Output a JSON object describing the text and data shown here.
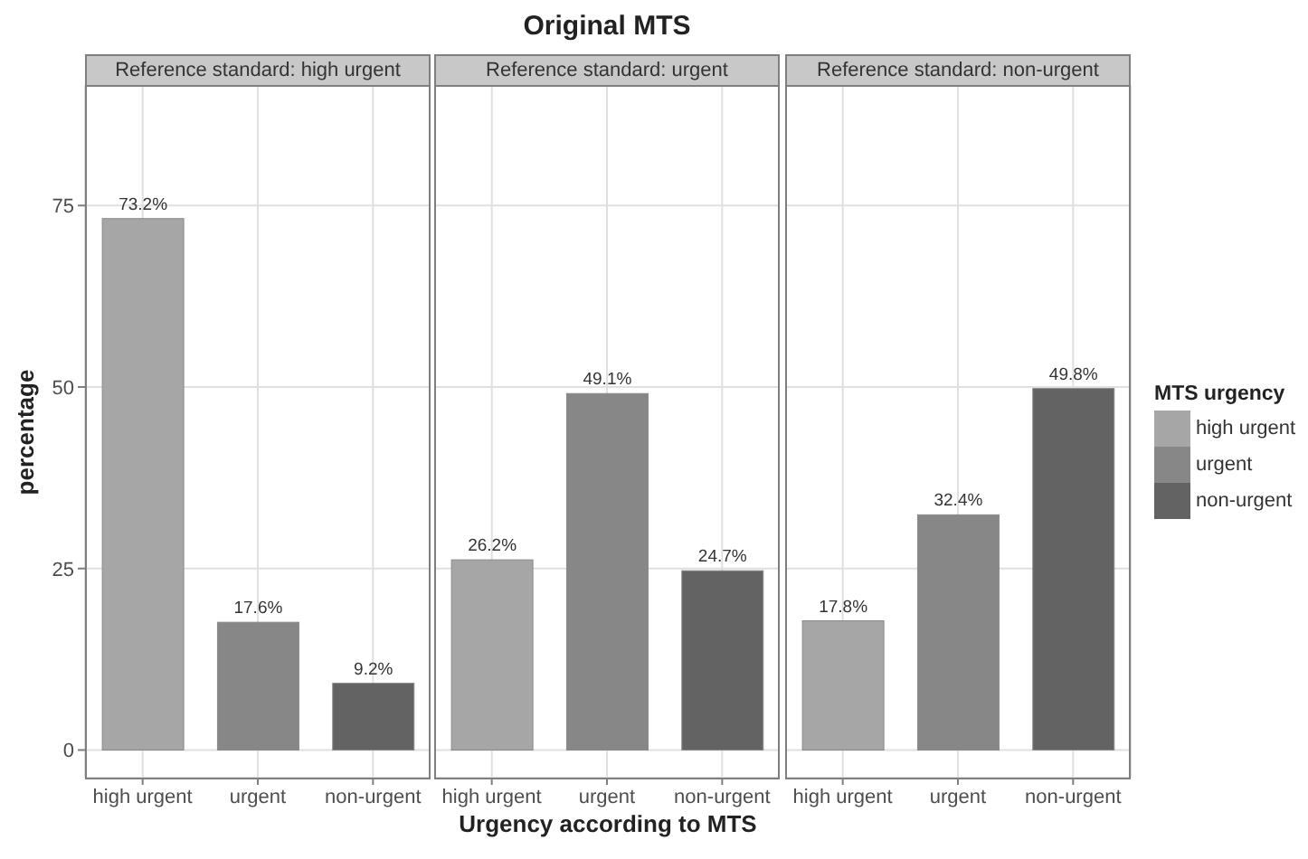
{
  "chart_data": [
    {
      "type": "bar",
      "subtitle": "Reference standard: high urgent",
      "ylabel": "percentage",
      "categories": [
        "high urgent",
        "urgent",
        "non-urgent"
      ],
      "stacked": true,
      "series": [
        {
          "color": "#a6a6a6",
          "values": [
            73.2,
            null,
            null
          ],
          "value_labels": [
            "73.2%",
            null,
            null
          ]
        },
        {
          "color": "#878787",
          "values": [
            null,
            17.6,
            null
          ],
          "value_labels": [
            null,
            "17.6%",
            null
          ]
        },
        {
          "color": "#636363",
          "values": [
            null,
            null,
            9.2
          ],
          "value_labels": [
            null,
            null,
            "9.2%"
          ]
        }
      ],
      "ylim": [
        -3.8,
        91.6
      ],
      "yticks": [
        0,
        25,
        50,
        75
      ],
      "grid": true
    },
    {
      "type": "bar",
      "title": "Original MTS",
      "subtitle": "Reference standard: urgent",
      "xlabel": "Urgency according to MTS",
      "categories": [
        "high urgent",
        "urgent",
        "non-urgent"
      ],
      "stacked": true,
      "series": [
        {
          "color": "#a6a6a6",
          "values": [
            26.2,
            null,
            null
          ],
          "value_labels": [
            "26.2%",
            null,
            null
          ]
        },
        {
          "color": "#878787",
          "values": [
            null,
            49.1,
            null
          ],
          "value_labels": [
            null,
            "49.1%",
            null
          ]
        },
        {
          "color": "#636363",
          "values": [
            null,
            null,
            24.7
          ],
          "value_labels": [
            null,
            null,
            "24.7%"
          ]
        }
      ],
      "ylim": [
        -3.8,
        91.6
      ],
      "yticks": [
        0,
        25,
        50,
        75
      ],
      "grid": true,
      "tick_labels": "x"
    },
    {
      "type": "bar",
      "subtitle": "Reference standard: non-urgent",
      "legend_title": "MTS urgency",
      "legend": "right",
      "categories": [
        "high urgent",
        "urgent",
        "non-urgent"
      ],
      "stacked": true,
      "series": [
        {
          "name": "high urgent",
          "color": "#a6a6a6",
          "values": [
            17.8,
            null,
            null
          ],
          "value_labels": [
            "17.8%",
            null,
            null
          ]
        },
        {
          "name": "urgent",
          "color": "#878787",
          "values": [
            null,
            32.4,
            null
          ],
          "value_labels": [
            null,
            "32.4%",
            null
          ]
        },
        {
          "name": "non-urgent",
          "color": "#636363",
          "values": [
            null,
            null,
            49.8
          ],
          "value_labels": [
            null,
            null,
            "49.8%"
          ]
        }
      ],
      "ylim": [
        -3.8,
        91.6
      ],
      "yticks": [
        0,
        25,
        50,
        75
      ],
      "grid": true,
      "tick_labels": "x"
    }
  ]
}
